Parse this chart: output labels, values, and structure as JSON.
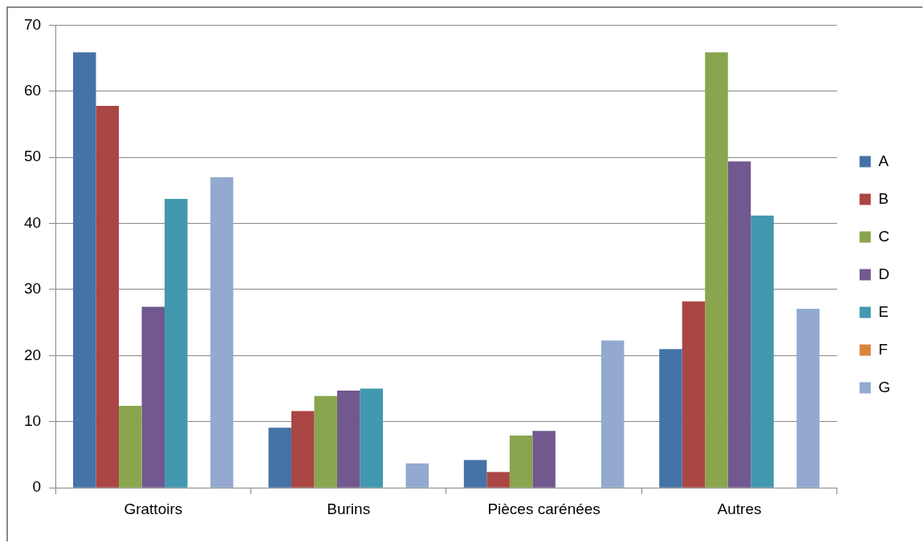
{
  "chart_data": {
    "type": "bar",
    "categories": [
      "Grattoirs",
      "Burins",
      "Pièces carénées",
      "Autres"
    ],
    "series": [
      {
        "name": "A",
        "color": "#4572a7",
        "values": [
          65.9,
          9.1,
          4.2,
          21.0
        ]
      },
      {
        "name": "B",
        "color": "#aa4643",
        "values": [
          57.8,
          11.6,
          2.4,
          28.2
        ]
      },
      {
        "name": "C",
        "color": "#89a54e",
        "values": [
          12.4,
          13.9,
          7.9,
          65.9
        ]
      },
      {
        "name": "D",
        "color": "#71588f",
        "values": [
          27.4,
          14.7,
          8.6,
          49.4
        ]
      },
      {
        "name": "E",
        "color": "#4198af",
        "values": [
          43.7,
          15.0,
          0,
          41.2
        ]
      },
      {
        "name": "F",
        "color": "#db843d",
        "values": [
          0,
          0,
          0,
          0
        ]
      },
      {
        "name": "G",
        "color": "#93a9cf",
        "values": [
          47.0,
          3.7,
          22.3,
          27.1
        ]
      }
    ],
    "ylim": [
      0,
      70
    ],
    "yticks": [
      0,
      10,
      20,
      30,
      40,
      50,
      60,
      70
    ],
    "grid": "y",
    "legend": "right"
  }
}
